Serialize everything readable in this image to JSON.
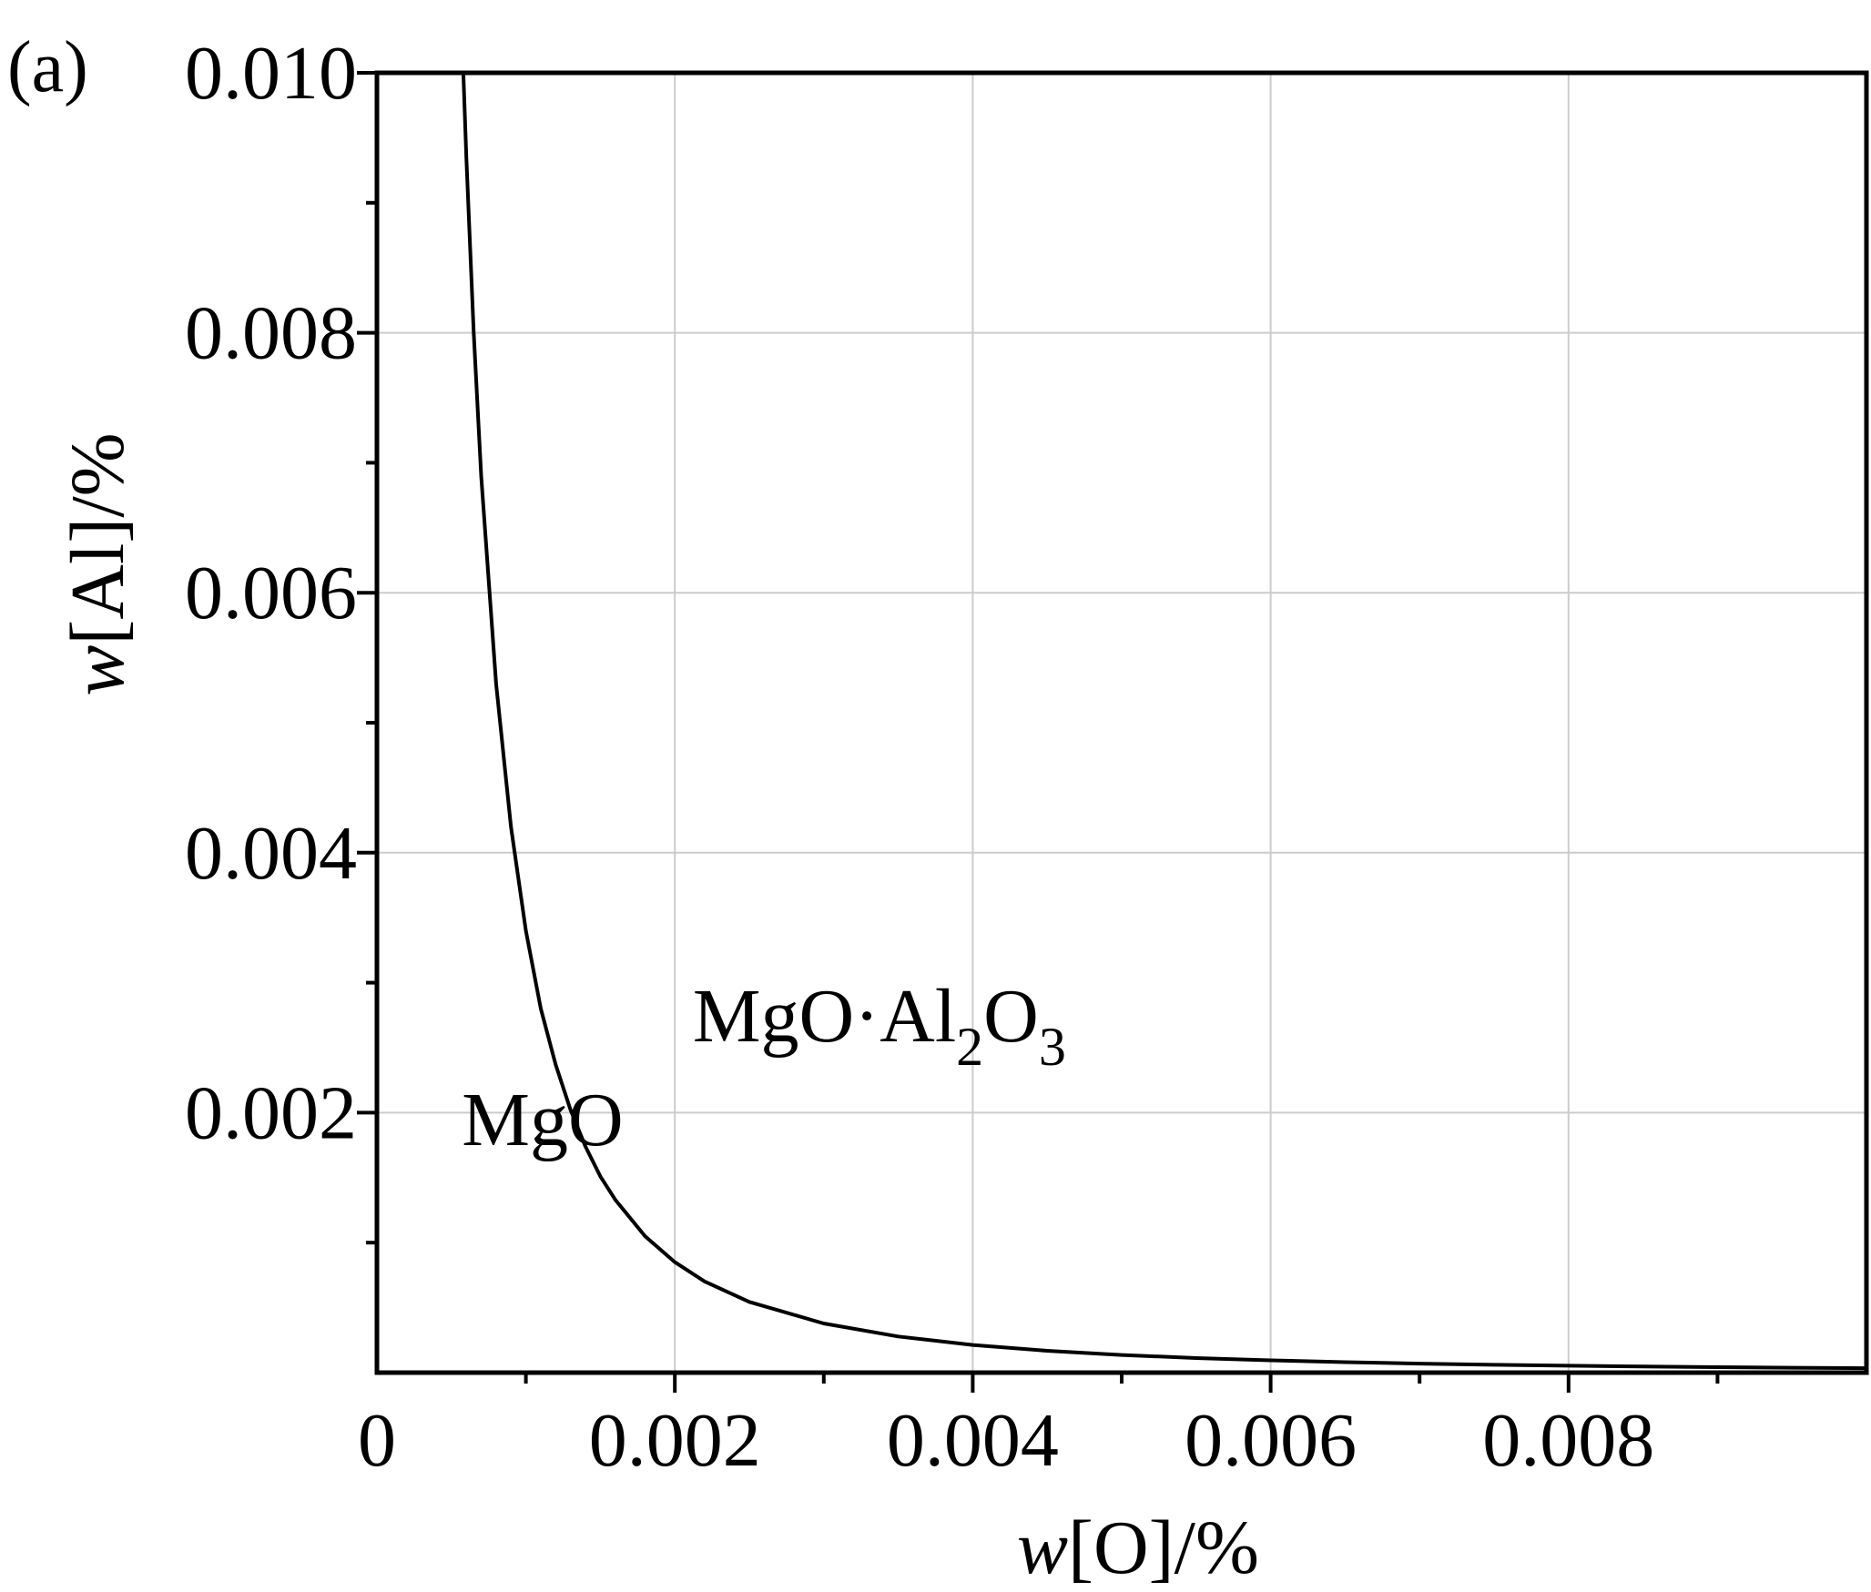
{
  "chart_data": {
    "type": "line",
    "panel_label": "(a)",
    "title": "",
    "xlabel": {
      "italic": "w",
      "rest": "[O]/%"
    },
    "ylabel": {
      "italic": "w",
      "rest": "[Al]/%"
    },
    "xlim": [
      0,
      0.01
    ],
    "ylim": [
      0,
      0.01
    ],
    "x_ticks": [
      0,
      0.002,
      0.004,
      0.006,
      0.008
    ],
    "x_tick_labels": [
      "0",
      "0.002",
      "0.004",
      "0.006",
      "0.008"
    ],
    "y_ticks": [
      0.002,
      0.004,
      0.006,
      0.008,
      0.01
    ],
    "y_tick_labels": [
      "0.002",
      "0.004",
      "0.006",
      "0.008",
      "0.010"
    ],
    "grid": true,
    "series": [
      {
        "x": [
          0.00058,
          0.0006,
          0.00065,
          0.0007,
          0.0008,
          0.0009,
          0.001,
          0.0011,
          0.0012,
          0.0013,
          0.0014,
          0.0015,
          0.0016,
          0.0018,
          0.002,
          0.0022,
          0.0025,
          0.003,
          0.0035,
          0.004,
          0.0045,
          0.005,
          0.0055,
          0.006,
          0.0065,
          0.007,
          0.0075,
          0.008,
          0.0085,
          0.009,
          0.0095,
          0.01
        ],
        "y": [
          0.01,
          0.00935,
          0.008,
          0.0069,
          0.0053,
          0.0042,
          0.0034,
          0.0028,
          0.00237,
          0.00202,
          0.00174,
          0.00151,
          0.00133,
          0.00105,
          0.00085,
          0.000702,
          0.000544,
          0.000378,
          0.000278,
          0.000213,
          0.000168,
          0.000136,
          0.000112,
          9.44e-05,
          8.05e-05,
          6.94e-05,
          6.04e-05,
          5.31e-05,
          4.7e-05,
          4.2e-05,
          3.77e-05,
          3.4e-05
        ]
      }
    ],
    "annotations": [
      {
        "text": "MgO",
        "x": 0.00057,
        "y": 0.00175
      },
      {
        "main": "MgO·Al",
        "sub1": "2",
        "mid": "O",
        "sub2": "3",
        "x": 0.00212,
        "y": 0.00255
      }
    ]
  }
}
